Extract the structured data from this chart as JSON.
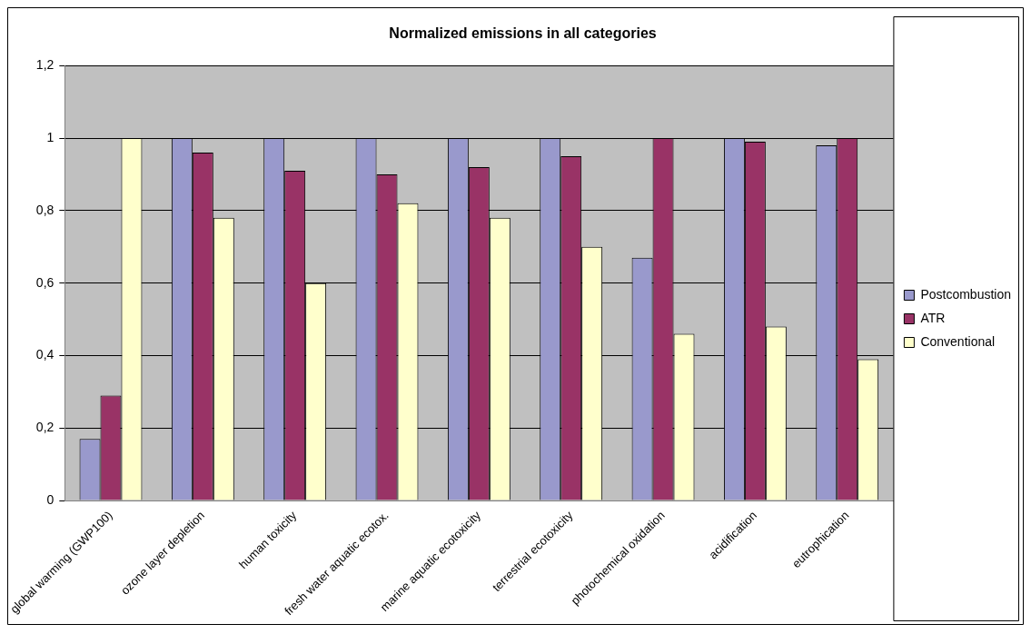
{
  "chart_data": {
    "type": "bar",
    "title": "Normalized emissions in all categories",
    "categories": [
      "global warming (GWP100)",
      "ozone layer depletion",
      "human toxicity",
      "fresh water aquatic ecotox.",
      "marine aquatic ecotoxicity",
      "terrestrial ecotoxicity",
      "photochemical oxidation",
      "acidification",
      "eutrophication"
    ],
    "series": [
      {
        "name": "Postcombustion",
        "color": "#9999cc",
        "values": [
          0.17,
          1,
          1,
          1,
          1,
          1,
          0.67,
          1,
          0.98
        ]
      },
      {
        "name": "ATR",
        "color": "#993366",
        "values": [
          0.29,
          0.96,
          0.91,
          0.9,
          0.92,
          0.95,
          1,
          0.99,
          1
        ]
      },
      {
        "name": "Conventional",
        "color": "#ffffcc",
        "values": [
          1,
          0.78,
          0.6,
          0.82,
          0.78,
          0.7,
          0.46,
          0.48,
          0.39
        ]
      }
    ],
    "ylim": [
      0,
      1.2
    ],
    "yticks": [
      0,
      {
        "value": 0.2,
        "label": "0,2"
      },
      {
        "value": 0.4,
        "label": "0,4"
      },
      {
        "value": 0.6,
        "label": "0,6"
      },
      {
        "value": 0.8,
        "label": "0,8"
      },
      1,
      {
        "value": 1.2,
        "label": "1,2"
      }
    ],
    "grid": "y",
    "legend": "right"
  }
}
